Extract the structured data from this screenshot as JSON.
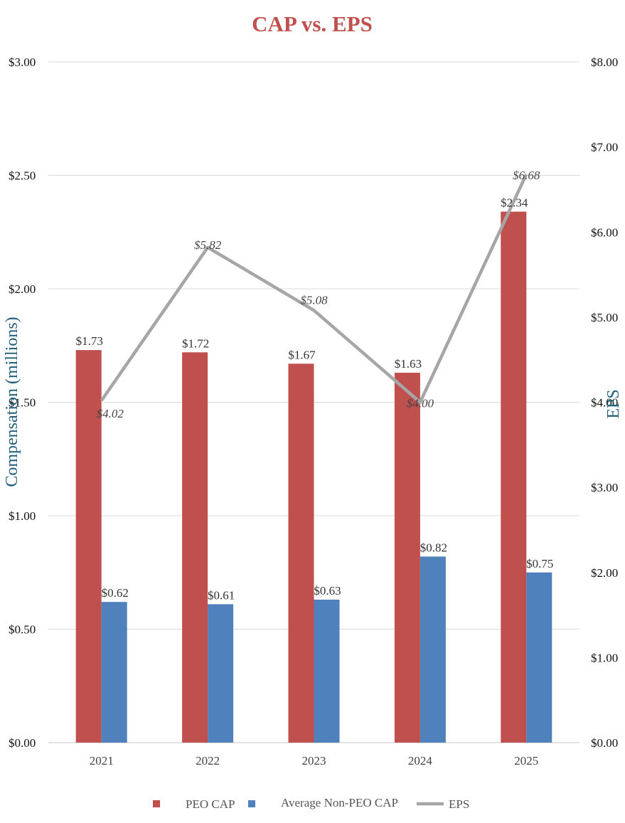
{
  "chart_data": {
    "type": "bar",
    "title": "CAP vs. EPS",
    "categories": [
      "2021",
      "2022",
      "2023",
      "2024",
      "2025"
    ],
    "series": [
      {
        "name": "PEO CAP",
        "kind": "bar",
        "axis": "left",
        "color": "#C0504D",
        "values": [
          1.73,
          1.72,
          1.67,
          1.63,
          2.34
        ],
        "labels": [
          "$1.73",
          "$1.72",
          "$1.67",
          "$1.63",
          "$2.34"
        ]
      },
      {
        "name": "Average Non-PEO CAP",
        "kind": "bar",
        "axis": "left",
        "color": "#4F81BD",
        "values": [
          0.62,
          0.61,
          0.63,
          0.82,
          0.75
        ],
        "labels": [
          "$0.62",
          "$0.61",
          "$0.63",
          "$0.82",
          "$0.75"
        ]
      },
      {
        "name": "EPS",
        "kind": "line",
        "axis": "right",
        "color": "#A6A6A6",
        "values": [
          4.02,
          5.82,
          5.08,
          4.0,
          6.68
        ],
        "labels": [
          "$4.02",
          "$5.82",
          "$5.08",
          "$4.00",
          "$6.68"
        ]
      }
    ],
    "ylabel": "Compensation (millions)",
    "y2label": "EPS",
    "ylim": [
      0,
      3
    ],
    "y2lim": [
      0,
      8
    ],
    "yticks": [
      0,
      0.5,
      1,
      1.5,
      2,
      2.5,
      3
    ],
    "yticklabels": [
      "$0.00",
      "$0.50",
      "$1.00",
      "$1.50",
      "$2.00",
      "$2.50",
      "$3.00"
    ],
    "y2ticks": [
      0,
      1,
      2,
      3,
      4,
      5,
      6,
      7,
      8
    ],
    "y2ticklabels": [
      "$0.00",
      "$1.00",
      "$2.00",
      "$3.00",
      "$4.00",
      "$5.00",
      "$6.00",
      "$7.00",
      "$8.00"
    ],
    "grid": true,
    "legend_position": "bottom",
    "colors": {
      "title": "#C0504D",
      "axis_title": "#1F5F7A",
      "grid": "#D9D9D9"
    }
  }
}
